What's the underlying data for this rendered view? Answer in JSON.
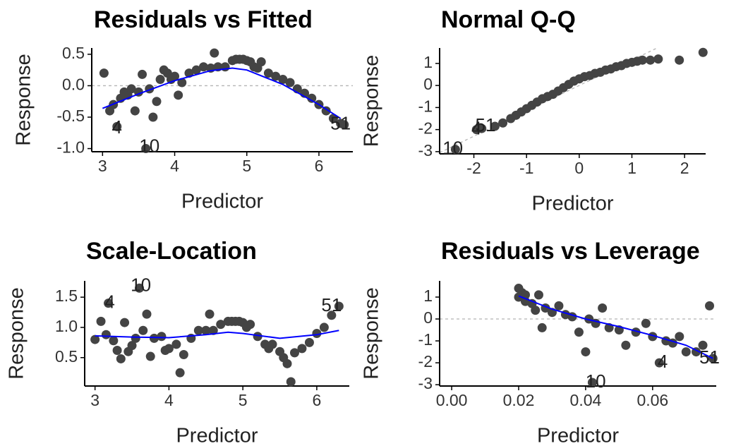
{
  "chart_data": [
    {
      "type": "scatter",
      "title": "Residuals vs Fitted",
      "x_label": "Predictor",
      "y_label": "Response",
      "xlim": [
        2.85,
        6.47
      ],
      "ylim": [
        -1.05,
        0.6
      ],
      "xticks": [
        3,
        4,
        5,
        6
      ],
      "yticks": [
        {
          "value": 0.5,
          "label": "0.5"
        },
        {
          "value": 0,
          "label": "0.0"
        },
        {
          "value": -0.5,
          "label": "-0.5"
        },
        {
          "value": -1,
          "label": "-1.0"
        }
      ],
      "point_color": "#444444",
      "line_color": "#0000ff",
      "reference_color": "#b5b5b5",
      "hline": 0,
      "x": [
        3.02,
        3.1,
        3.15,
        3.2,
        3.25,
        3.3,
        3.35,
        3.4,
        3.45,
        3.5,
        3.55,
        3.6,
        3.65,
        3.7,
        3.75,
        3.8,
        3.85,
        3.9,
        3.95,
        4.0,
        4.05,
        4.1,
        4.2,
        4.3,
        4.4,
        4.5,
        4.55,
        4.6,
        4.7,
        4.8,
        4.85,
        4.9,
        4.95,
        5.0,
        5.05,
        5.1,
        5.15,
        5.2,
        5.3,
        5.4,
        5.5,
        5.6,
        5.7,
        5.8,
        5.9,
        6.0,
        6.1,
        6.2,
        6.3,
        6.35
      ],
      "values": [
        0.2,
        -0.4,
        -0.3,
        -0.65,
        -0.2,
        -0.1,
        -0.15,
        -0.05,
        -0.4,
        -0.1,
        0.18,
        -1.0,
        -0.05,
        -0.5,
        -0.25,
        0.1,
        0.25,
        0.2,
        0.1,
        0.15,
        -0.15,
        0.05,
        0.2,
        0.25,
        0.3,
        0.28,
        0.52,
        0.3,
        0.3,
        0.4,
        0.42,
        0.42,
        0.42,
        0.4,
        0.38,
        0.3,
        0.28,
        0.38,
        0.2,
        0.15,
        0.1,
        0.05,
        -0.05,
        -0.12,
        -0.2,
        -0.3,
        -0.4,
        -0.52,
        -0.6,
        -0.62
      ],
      "smooth": {
        "x": [
          3.0,
          3.5,
          4.0,
          4.5,
          4.8,
          5.0,
          5.5,
          6.0,
          6.3
        ],
        "values": [
          -0.36,
          -0.13,
          0.08,
          0.24,
          0.28,
          0.25,
          0.02,
          -0.3,
          -0.52
        ]
      },
      "annotations": [
        {
          "text": "4",
          "x": 3.2,
          "y": -0.68
        },
        {
          "text": "10",
          "x": 3.65,
          "y": -0.98
        },
        {
          "text": "51",
          "x": 6.3,
          "y": -0.62
        }
      ]
    },
    {
      "type": "scatter",
      "title": "Normal Q-Q",
      "x_label": "Predictor",
      "y_label": "Response",
      "xlim": [
        -2.65,
        2.4
      ],
      "ylim": [
        -3.1,
        1.7
      ],
      "xticks": [
        -2,
        -1,
        0,
        1,
        2
      ],
      "yticks": [
        1,
        0,
        -1,
        -2,
        -3
      ],
      "point_color": "#444444",
      "reference_color": "#b5b5b5",
      "abline": {
        "intercept": 0,
        "slope": 1.15
      },
      "x": [
        -2.35,
        -1.95,
        -1.85,
        -1.6,
        -1.45,
        -1.3,
        -1.2,
        -1.1,
        -1.0,
        -0.9,
        -0.8,
        -0.7,
        -0.6,
        -0.5,
        -0.4,
        -0.3,
        -0.2,
        -0.1,
        0,
        0.1,
        0.2,
        0.3,
        0.4,
        0.5,
        0.6,
        0.7,
        0.8,
        0.9,
        1.0,
        1.1,
        1.2,
        1.35,
        1.5,
        1.9,
        2.35
      ],
      "values": [
        -2.9,
        -2.0,
        -1.95,
        -1.85,
        -1.7,
        -1.5,
        -1.35,
        -1.2,
        -1.05,
        -0.9,
        -0.75,
        -0.6,
        -0.5,
        -0.4,
        -0.25,
        -0.1,
        0.05,
        0.2,
        0.3,
        0.4,
        0.45,
        0.55,
        0.6,
        0.7,
        0.75,
        0.85,
        0.9,
        1.0,
        1.05,
        1.1,
        1.15,
        1.15,
        1.2,
        1.15,
        1.5
      ],
      "annotations": [
        {
          "text": "10",
          "x": -2.4,
          "y": -2.9
        },
        {
          "text": "4",
          "x": -1.95,
          "y": -2.0
        },
        {
          "text": "51",
          "x": -1.78,
          "y": -1.85
        }
      ]
    },
    {
      "type": "scatter",
      "title": "Scale-Location",
      "x_label": "Predictor",
      "y_label": "Response",
      "xlim": [
        2.86,
        6.44
      ],
      "ylim": [
        0.03,
        1.77
      ],
      "xticks": [
        3,
        4,
        5,
        6
      ],
      "yticks": [
        1.5,
        {
          "value": 1,
          "label": "1.0"
        },
        0.5
      ],
      "point_color": "#444444",
      "line_color": "#0000ff",
      "x": [
        3.0,
        3.08,
        3.15,
        3.18,
        3.25,
        3.3,
        3.35,
        3.4,
        3.45,
        3.5,
        3.55,
        3.6,
        3.65,
        3.7,
        3.75,
        3.8,
        3.9,
        3.95,
        4.0,
        4.1,
        4.15,
        4.2,
        4.3,
        4.4,
        4.5,
        4.55,
        4.6,
        4.7,
        4.8,
        4.85,
        4.9,
        4.95,
        5.0,
        5.05,
        5.1,
        5.2,
        5.3,
        5.35,
        5.4,
        5.5,
        5.55,
        5.6,
        5.65,
        5.7,
        5.8,
        5.9,
        6.0,
        6.1,
        6.2,
        6.3
      ],
      "values": [
        0.8,
        1.1,
        0.88,
        1.4,
        0.78,
        0.62,
        0.48,
        1.08,
        0.6,
        0.7,
        0.82,
        1.65,
        0.95,
        1.22,
        0.52,
        0.82,
        0.85,
        0.62,
        0.65,
        0.72,
        0.25,
        0.55,
        0.82,
        0.95,
        0.95,
        1.22,
        0.95,
        1.05,
        1.1,
        1.1,
        1.1,
        1.1,
        1.08,
        1.0,
        1.05,
        0.85,
        0.72,
        0.65,
        0.72,
        0.6,
        0.5,
        0.4,
        0.1,
        0.58,
        0.65,
        0.75,
        0.9,
        1.0,
        1.2,
        1.35
      ],
      "smooth": {
        "x": [
          3.0,
          3.5,
          4.0,
          4.5,
          4.8,
          5.0,
          5.5,
          6.0,
          6.3
        ],
        "values": [
          0.86,
          0.84,
          0.83,
          0.88,
          0.92,
          0.9,
          0.82,
          0.88,
          0.95
        ]
      },
      "annotations": [
        {
          "text": "4",
          "x": 3.2,
          "y": 1.4
        },
        {
          "text": "10",
          "x": 3.62,
          "y": 1.68
        },
        {
          "text": "51",
          "x": 6.2,
          "y": 1.35
        }
      ]
    },
    {
      "type": "scatter",
      "title": "Residuals vs Leverage",
      "x_label": "Predictor",
      "y_label": "Response",
      "xlim": [
        -0.0036,
        0.079
      ],
      "ylim": [
        -3.06,
        1.74
      ],
      "xticks": [
        {
          "value": 0,
          "label": "0.00"
        },
        {
          "value": 0.02,
          "label": "0.02"
        },
        {
          "value": 0.04,
          "label": "0.04"
        },
        {
          "value": 0.06,
          "label": "0.06"
        }
      ],
      "yticks": [
        1,
        0,
        -1,
        -2,
        -3
      ],
      "point_color": "#444444",
      "line_color": "#0000ff",
      "reference_color": "#b5b5b5",
      "hline": 0,
      "x": [
        0.02,
        0.02,
        0.021,
        0.022,
        0.022,
        0.024,
        0.025,
        0.026,
        0.027,
        0.028,
        0.03,
        0.032,
        0.034,
        0.036,
        0.038,
        0.04,
        0.041,
        0.042,
        0.043,
        0.045,
        0.047,
        0.05,
        0.052,
        0.055,
        0.058,
        0.06,
        0.062,
        0.064,
        0.066,
        0.068,
        0.07,
        0.073,
        0.075,
        0.077,
        0.078
      ],
      "values": [
        1.4,
        1.0,
        1.2,
        0.8,
        1.1,
        0.7,
        0.4,
        1.1,
        -0.4,
        0.5,
        0.3,
        0.6,
        0.2,
        0.1,
        -0.6,
        -1.5,
        0.0,
        -2.9,
        -0.2,
        0.5,
        -0.4,
        -0.5,
        -1.2,
        -0.6,
        -0.2,
        -0.8,
        -2.0,
        -1.0,
        -1.1,
        -0.8,
        -1.5,
        -1.5,
        -1.2,
        0.6,
        -1.8
      ],
      "smooth": {
        "x": [
          0.02,
          0.03,
          0.04,
          0.05,
          0.06,
          0.07,
          0.078
        ],
        "values": [
          1.05,
          0.45,
          0.0,
          -0.35,
          -0.75,
          -1.2,
          -1.8
        ]
      },
      "annotations": [
        {
          "text": "4",
          "x": 0.063,
          "y": -2.0
        },
        {
          "text": "10",
          "x": 0.043,
          "y": -2.9
        },
        {
          "text": "51",
          "x": 0.077,
          "y": -1.8
        }
      ]
    }
  ]
}
